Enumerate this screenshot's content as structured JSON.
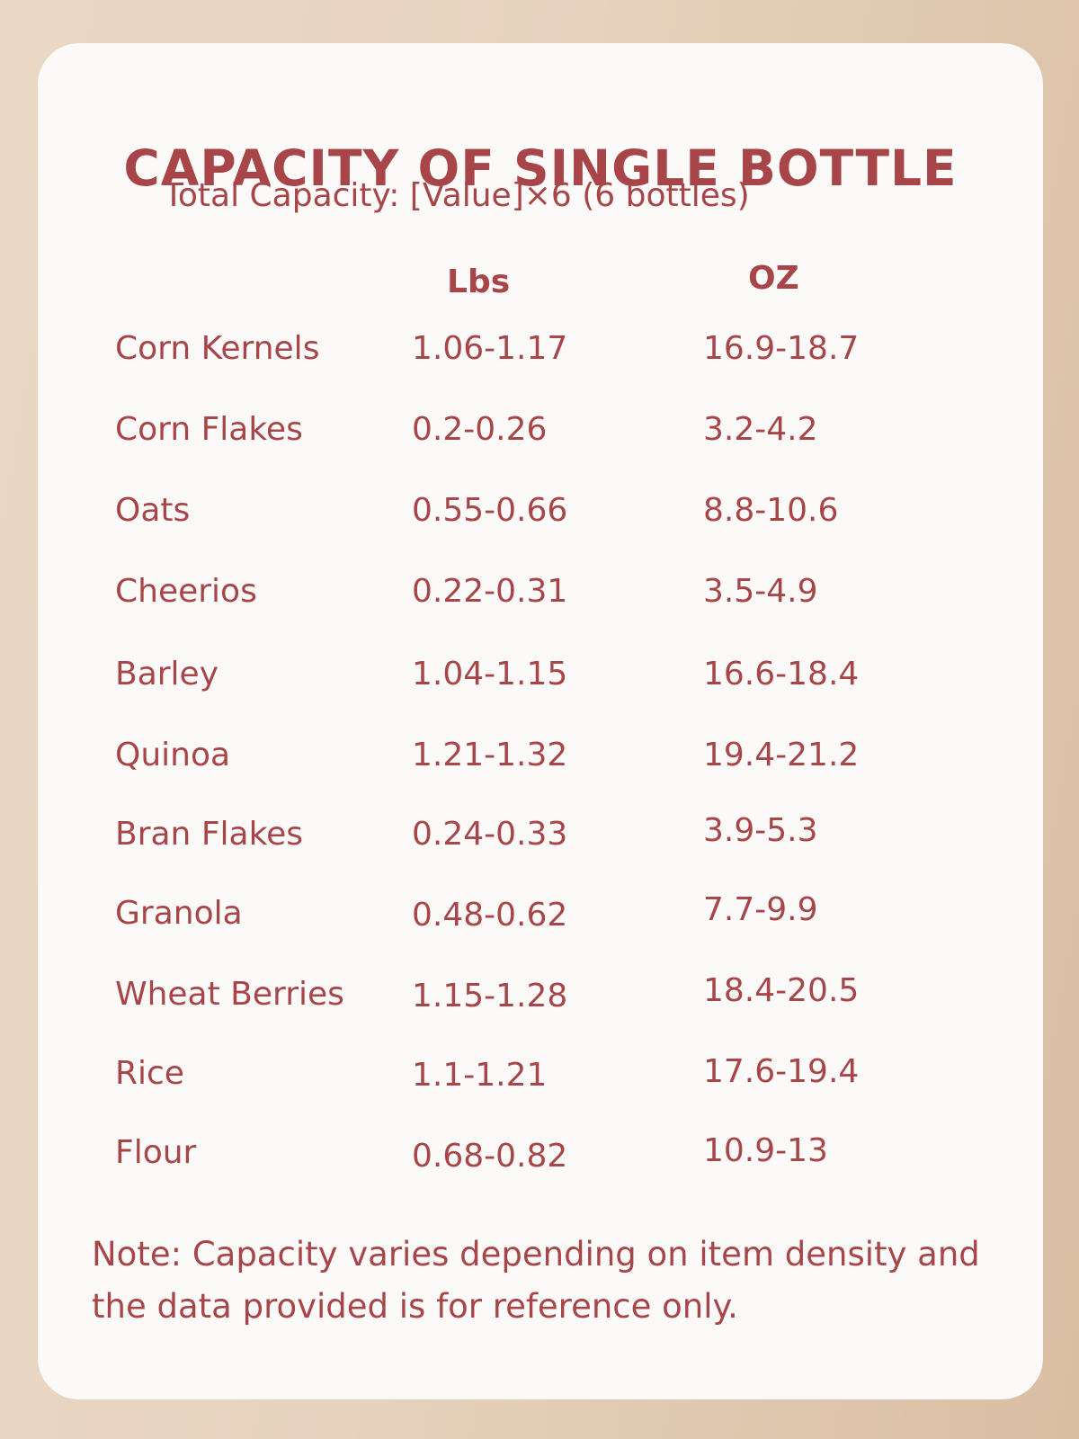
{
  "title": "CAPACITY OF SINGLE BOTTLE",
  "subtitle": "Total Capacity:  [Value]×6 (6 bottles)",
  "headers": {
    "lbs": "Lbs",
    "oz": "OZ"
  },
  "rows": [
    {
      "name": "Corn Kernels",
      "lbs": "1.06-1.17",
      "oz": "16.9-18.7"
    },
    {
      "name": "Corn Flakes",
      "lbs": "0.2-0.26",
      "oz": "3.2-4.2"
    },
    {
      "name": "Oats",
      "lbs": "0.55-0.66",
      "oz": "8.8-10.6"
    },
    {
      "name": "Cheerios",
      "lbs": "0.22-0.31",
      "oz": "3.5-4.9"
    },
    {
      "name": "Barley",
      "lbs": "1.04-1.15",
      "oz": "16.6-18.4"
    },
    {
      "name": "Quinoa",
      "lbs": "1.21-1.32",
      "oz": "19.4-21.2"
    },
    {
      "name": "Bran Flakes",
      "lbs": "0.24-0.33",
      "oz": "3.9-5.3"
    },
    {
      "name": "Granola",
      "lbs": "0.48-0.62",
      "oz": "7.7-9.9"
    },
    {
      "name": "Wheat Berries",
      "lbs": "1.15-1.28",
      "oz": "18.4-20.5"
    },
    {
      "name": "Rice",
      "lbs": "1.1-1.21",
      "oz": "17.6-19.4"
    },
    {
      "name": "Flour",
      "lbs": "0.68-0.82",
      "oz": "10.9-13"
    }
  ],
  "note": "Note: Capacity varies depending on item density and the data provided is for reference only.",
  "colors": {
    "text": "#a84548",
    "card": "#fcfaf8"
  }
}
